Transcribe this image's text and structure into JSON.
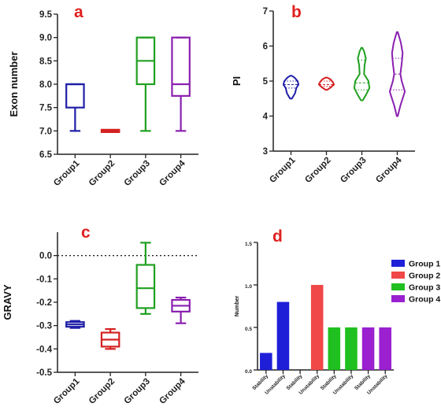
{
  "chart_data": [
    {
      "panel": "a",
      "type": "box",
      "ylabel": "Exon number",
      "ylim": [
        6.5,
        9.5
      ],
      "yticks": [
        "6.5",
        "7.0",
        "7.5",
        "8.0",
        "8.5",
        "9.0",
        "9.5"
      ],
      "categories": [
        "Group1",
        "Group2",
        "Group3",
        "Group4"
      ],
      "colors": [
        "#1f1fa8",
        "#d42020",
        "#20a020",
        "#8a20b0"
      ],
      "boxes": [
        {
          "min": 7.0,
          "q1": 7.5,
          "median": 8.0,
          "q3": 8.0,
          "max": 8.0
        },
        {
          "min": 7.0,
          "q1": 7.0,
          "median": 7.0,
          "q3": 7.0,
          "max": 7.0
        },
        {
          "min": 7.0,
          "q1": 8.0,
          "median": 8.5,
          "q3": 9.0,
          "max": 9.0
        },
        {
          "min": 7.0,
          "q1": 7.75,
          "median": 8.0,
          "q3": 9.0,
          "max": 9.0
        }
      ]
    },
    {
      "panel": "b",
      "type": "violin",
      "ylabel": "PI",
      "ylim": [
        3,
        7
      ],
      "yticks": [
        "3",
        "4",
        "5",
        "6",
        "7"
      ],
      "categories": [
        "Group1",
        "Group2",
        "Group3",
        "Group4"
      ],
      "colors": [
        "#1f1fa8",
        "#d42020",
        "#20a020",
        "#8a20b0"
      ],
      "violins": [
        {
          "min": 4.5,
          "max": 5.15,
          "median": 4.9,
          "q1": 4.8,
          "q3": 5.0,
          "profile": [
            [
              4.5,
              0.1
            ],
            [
              4.65,
              0.45
            ],
            [
              4.8,
              0.6
            ],
            [
              4.9,
              0.85
            ],
            [
              5.0,
              0.75
            ],
            [
              5.1,
              0.4
            ],
            [
              5.15,
              0.1
            ]
          ]
        },
        {
          "min": 4.75,
          "max": 5.1,
          "median": 4.9,
          "q1": 4.85,
          "q3": 5.0,
          "profile": [
            [
              4.75,
              0.1
            ],
            [
              4.82,
              0.5
            ],
            [
              4.9,
              0.85
            ],
            [
              4.98,
              0.7
            ],
            [
              5.05,
              0.45
            ],
            [
              5.1,
              0.1
            ]
          ]
        },
        {
          "min": 4.45,
          "max": 5.95,
          "median": 4.95,
          "q1": 4.75,
          "q3": 5.6,
          "profile": [
            [
              4.45,
              0.1
            ],
            [
              4.6,
              0.45
            ],
            [
              4.8,
              0.85
            ],
            [
              5.0,
              0.75
            ],
            [
              5.2,
              0.25
            ],
            [
              5.45,
              0.3
            ],
            [
              5.65,
              0.45
            ],
            [
              5.85,
              0.25
            ],
            [
              5.95,
              0.05
            ]
          ]
        },
        {
          "min": 4.0,
          "max": 6.4,
          "median": 5.2,
          "q1": 4.75,
          "q3": 5.65,
          "profile": [
            [
              4.0,
              0.05
            ],
            [
              4.3,
              0.35
            ],
            [
              4.7,
              0.85
            ],
            [
              5.0,
              0.5
            ],
            [
              5.2,
              0.35
            ],
            [
              5.5,
              0.5
            ],
            [
              5.8,
              0.6
            ],
            [
              6.1,
              0.4
            ],
            [
              6.4,
              0.05
            ]
          ]
        }
      ]
    },
    {
      "panel": "c",
      "type": "box",
      "ylabel": "GRAVY",
      "ylim": [
        -0.5,
        0.1
      ],
      "yticks": [
        "-0.5",
        "-0.4",
        "-0.3",
        "-0.2",
        "-0.1",
        "0.0"
      ],
      "reference_line": 0.0,
      "categories": [
        "Group1",
        "Group2",
        "Group3",
        "Group4"
      ],
      "colors": [
        "#1f1fa8",
        "#d42020",
        "#20a020",
        "#8a20b0"
      ],
      "boxes": [
        {
          "min": -0.31,
          "q1": -0.305,
          "median": -0.295,
          "q3": -0.285,
          "max": -0.28
        },
        {
          "min": -0.4,
          "q1": -0.39,
          "median": -0.36,
          "q3": -0.33,
          "max": -0.315
        },
        {
          "min": -0.25,
          "q1": -0.225,
          "median": -0.14,
          "q3": -0.04,
          "max": 0.055
        },
        {
          "min": -0.29,
          "q1": -0.24,
          "median": -0.215,
          "q3": -0.19,
          "max": -0.18
        }
      ]
    },
    {
      "panel": "d",
      "type": "bar",
      "ylabel": "Number",
      "ylim": [
        0,
        1.5
      ],
      "yticks": [
        "0.0",
        "0.5",
        "1.0",
        "1.5"
      ],
      "categories": [
        "Stability",
        "Unstability",
        "Stability",
        "Unstability",
        "Stability",
        "Unstability",
        "Stability",
        "Unstability"
      ],
      "values": [
        0.2,
        0.8,
        0.0,
        1.0,
        0.5,
        0.5,
        0.5,
        0.5
      ],
      "bar_series": [
        0,
        0,
        1,
        1,
        2,
        2,
        3,
        3
      ],
      "legend": [
        {
          "name": "Group 1",
          "color": "#1f1fd8"
        },
        {
          "name": "Group 2",
          "color": "#f04848"
        },
        {
          "name": "Group 3",
          "color": "#20c020"
        },
        {
          "name": "Group 4",
          "color": "#9a20d0"
        }
      ],
      "legend_position": "top-right"
    }
  ]
}
